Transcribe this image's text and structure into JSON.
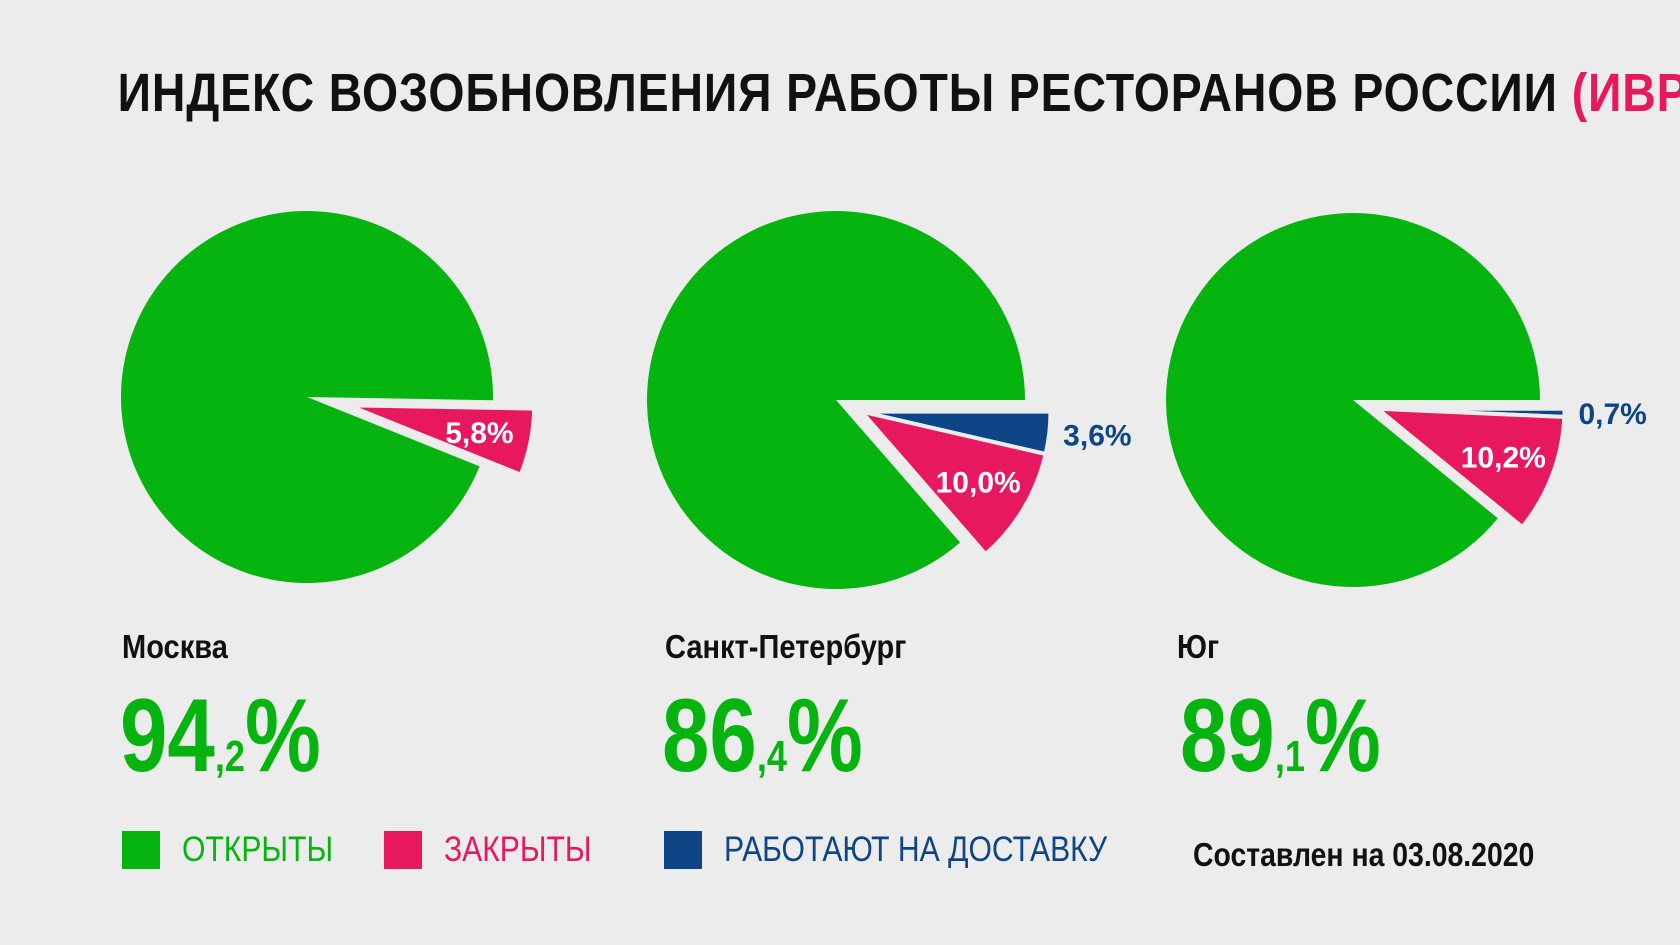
{
  "title": {
    "main": "ИНДЕКС ВОЗОБНОВЛЕНИЯ РАБОТЫ РЕСТОРАНОВ РОССИИ",
    "accent": "(ИВРР)"
  },
  "colors": {
    "open": "#05b40f",
    "closed": "#e8185f",
    "delivery": "#0d4587",
    "background": "#ececec"
  },
  "chart_data": [
    {
      "type": "pie",
      "region": "Москва",
      "headline": {
        "int": "94",
        "dec": ",2",
        "pct": "%"
      },
      "slices": [
        {
          "key": "open",
          "value": 94.2,
          "label": ""
        },
        {
          "key": "closed",
          "value": 5.8,
          "label": "5,8%"
        }
      ]
    },
    {
      "type": "pie",
      "region": "Санкт-Петербург",
      "headline": {
        "int": "86",
        "dec": ",4",
        "pct": "%"
      },
      "slices": [
        {
          "key": "open",
          "value": 86.4,
          "label": ""
        },
        {
          "key": "closed",
          "value": 10.0,
          "label": "10,0%"
        },
        {
          "key": "delivery",
          "value": 3.6,
          "label": "3,6%"
        }
      ]
    },
    {
      "type": "pie",
      "region": "Юг",
      "headline": {
        "int": "89",
        "dec": ",1",
        "pct": "%"
      },
      "slices": [
        {
          "key": "open",
          "value": 89.1,
          "label": ""
        },
        {
          "key": "closed",
          "value": 10.2,
          "label": "10,2%"
        },
        {
          "key": "delivery",
          "value": 0.7,
          "label": "0,7%"
        }
      ]
    }
  ],
  "legend": [
    {
      "key": "open",
      "label": "ОТКРЫТЫ"
    },
    {
      "key": "closed",
      "label": "ЗАКРЫТЫ"
    },
    {
      "key": "delivery",
      "label": "РАБОТАЮТ НА ДОСТАВКУ"
    }
  ],
  "footer": {
    "date_note": "Составлен на 03.08.2020"
  }
}
